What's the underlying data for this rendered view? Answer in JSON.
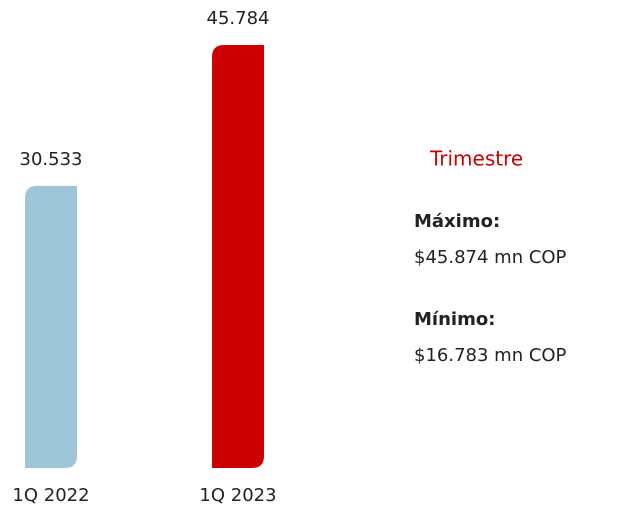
{
  "chart_data": {
    "type": "bar",
    "categories": [
      "1Q 2022",
      "1Q 2023"
    ],
    "values": [
      30.533,
      45.784
    ],
    "colors": [
      "#9fc6d8",
      "#cc0000"
    ],
    "ylim": [
      0,
      50
    ],
    "panel": {
      "title": "Trimestre",
      "items": [
        {
          "label": "Máximo:",
          "text": "$45.874 mn COP"
        },
        {
          "label": "Mínimo:",
          "text": "$16.783 mn COP"
        }
      ]
    }
  }
}
